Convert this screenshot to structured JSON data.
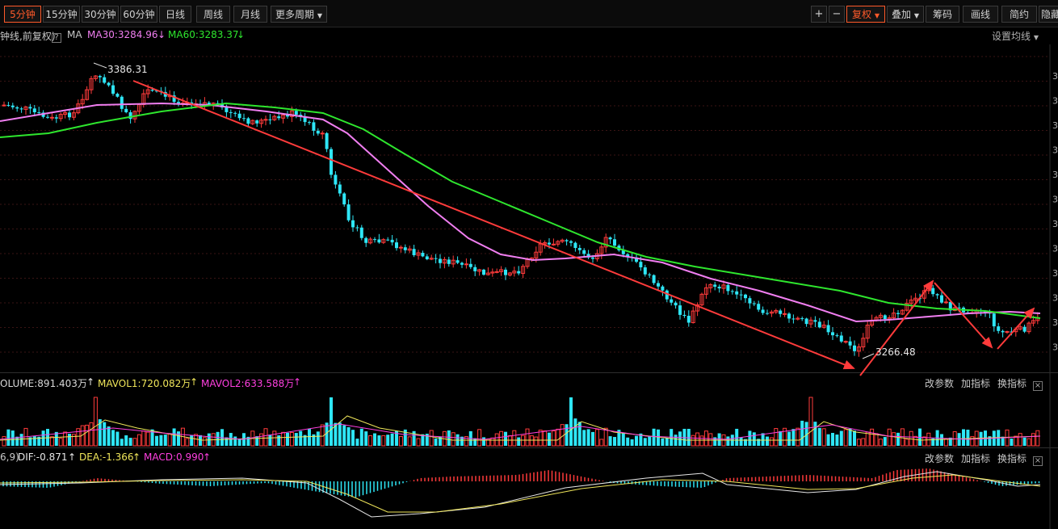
{
  "toolbar": {
    "periods": [
      "5分钟",
      "15分钟",
      "30分钟",
      "60分钟",
      "日线",
      "周线",
      "月线"
    ],
    "more_period": "更多周期",
    "plus": "+",
    "minus": "−",
    "fuquan": "复权",
    "diejia": "叠加",
    "chouma": "筹码",
    "huaxian": "画线",
    "jianyue": "简约",
    "yincang": "隐藏"
  },
  "main_info": {
    "prefix": "钟线,前复权)",
    "ma": "MA",
    "ma30": "MA30:3284.96",
    "ma30_arrow": "↓",
    "ma60": "MA60:3283.37",
    "ma60_arrow": "↓",
    "settings": "设置均线"
  },
  "chart_data": {
    "type": "candlestick",
    "labels": {
      "high": "3386.31",
      "low": "3266.48"
    },
    "colors": {
      "up": "#ff3b3b",
      "down": "#2ee6f6",
      "ma30": "#f07ef0",
      "ma60": "#2ee62e",
      "trend": "#ff3b3b"
    }
  },
  "volume_info": {
    "volume": "OLUME:891.403万",
    "mavol1": "MAVOL1:720.082万",
    "mavol2": "MAVOL2:633.588万",
    "up_arrow": "↑"
  },
  "macd_info": {
    "prefix": "6,9)",
    "dif": "DIF:-0.871",
    "dea": "DEA:-1.366",
    "macd": "MACD:0.990",
    "up_arrow": "↑"
  },
  "panel_actions": {
    "change_params": "改参数",
    "add_indicator": "加指标",
    "switch_indicator": "换指标"
  }
}
